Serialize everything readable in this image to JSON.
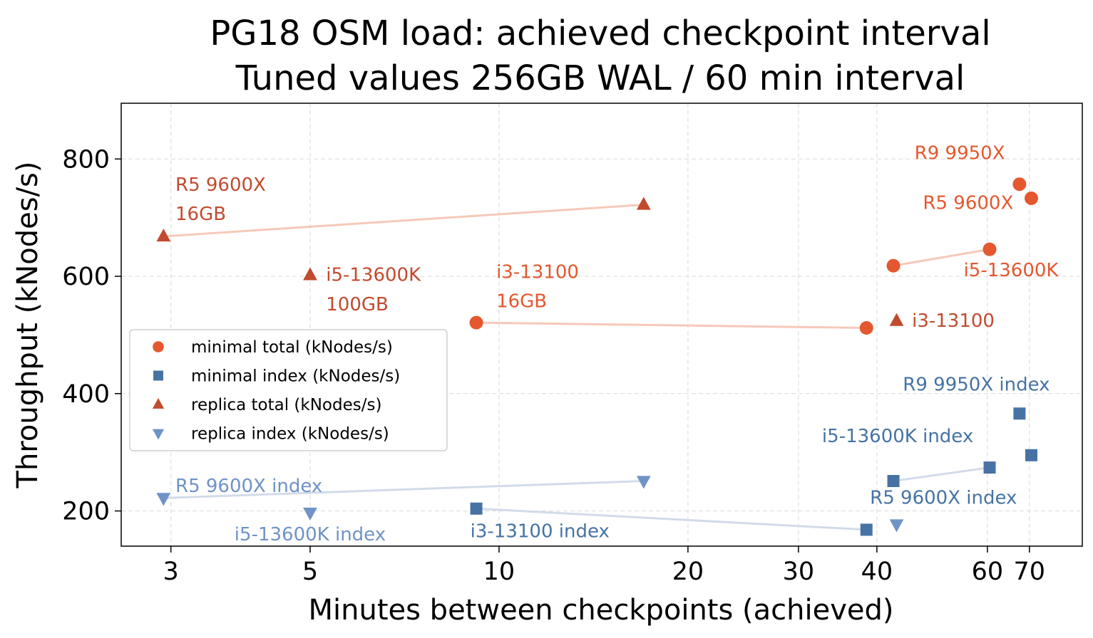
{
  "chart_data": {
    "type": "scatter",
    "title": [
      "PG18 OSM load:  achieved checkpoint interval",
      "Tuned values 256GB WAL / 60 min interval"
    ],
    "xlabel": "Minutes between checkpoints (achieved)",
    "ylabel": "Throughput (kNodes/s)",
    "xscale": "log",
    "xlim": [
      2.5,
      85
    ],
    "ylim": [
      140,
      895
    ],
    "xticks": [
      3,
      5,
      10,
      20,
      30,
      40,
      60,
      70
    ],
    "xtick_labels": [
      "3",
      "5",
      "10",
      "20",
      "30",
      "40",
      "60",
      "70"
    ],
    "yticks": [
      200,
      400,
      600,
      800
    ],
    "ytick_labels": [
      "200",
      "400",
      "600",
      "800"
    ],
    "grid": true,
    "legend_position": "center-left",
    "colors": {
      "minimal_total": "#e5572e",
      "minimal_index": "#4673a4",
      "replica_total": "#c14b2f",
      "replica_index": "#6f93c7",
      "minimal_total_line": "#f6c9b9",
      "index_line": "#d2dbea"
    },
    "series": [
      {
        "name": "minimal total (kNodes/s)",
        "marker": "circle",
        "color": "#e5572e",
        "points": [
          {
            "x": 9.2,
            "y": 521,
            "label": "i3-13100"
          },
          {
            "x": 38.5,
            "y": 512,
            "label": "i3-13100"
          },
          {
            "x": 42.5,
            "y": 618,
            "label": "i5-13600K"
          },
          {
            "x": 60.5,
            "y": 646,
            "label": "i5-13600K"
          },
          {
            "x": 67.5,
            "y": 757,
            "label": "R9 9950X"
          },
          {
            "x": 70.5,
            "y": 733,
            "label": "R5 9600X"
          }
        ]
      },
      {
        "name": "minimal index (kNodes/s)",
        "marker": "square",
        "color": "#4673a4",
        "points": [
          {
            "x": 9.2,
            "y": 204,
            "label": "i3-13100"
          },
          {
            "x": 38.5,
            "y": 168,
            "label": "i3-13100"
          },
          {
            "x": 42.5,
            "y": 251,
            "label": "i5-13600K"
          },
          {
            "x": 60.5,
            "y": 274,
            "label": "i5-13600K"
          },
          {
            "x": 67.5,
            "y": 366,
            "label": "R9 9950X"
          },
          {
            "x": 70.5,
            "y": 295,
            "label": "R5 9600X"
          }
        ]
      },
      {
        "name": "replica total (kNodes/s)",
        "marker": "triangle-up",
        "color": "#c14b2f",
        "points": [
          {
            "x": 2.92,
            "y": 668,
            "label": "R5 9600X"
          },
          {
            "x": 17.0,
            "y": 722,
            "label": "R5 9600X"
          },
          {
            "x": 5.0,
            "y": 602,
            "label": "i5-13600K"
          },
          {
            "x": 43.0,
            "y": 524,
            "label": "i3-13100"
          }
        ]
      },
      {
        "name": "replica index (kNodes/s)",
        "marker": "triangle-down",
        "color": "#6f93c7",
        "points": [
          {
            "x": 2.92,
            "y": 222,
            "label": "R5 9600X"
          },
          {
            "x": 17.0,
            "y": 251,
            "label": "R5 9600X"
          },
          {
            "x": 5.0,
            "y": 197,
            "label": "i5-13600K"
          },
          {
            "x": 43.0,
            "y": 177,
            "label": "i3-13100"
          }
        ]
      }
    ],
    "connectors": [
      {
        "color": "#f6c9b9",
        "from": [
          2.92,
          668
        ],
        "to": [
          17.0,
          722
        ]
      },
      {
        "color": "#d2dbea",
        "from": [
          2.92,
          222
        ],
        "to": [
          17.0,
          251
        ]
      },
      {
        "color": "#f6c9b9",
        "from": [
          9.2,
          521
        ],
        "to": [
          38.5,
          512
        ]
      },
      {
        "color": "#d2dbea",
        "from": [
          9.2,
          204
        ],
        "to": [
          38.5,
          168
        ]
      },
      {
        "color": "#f6c9b9",
        "from": [
          42.5,
          618
        ],
        "to": [
          60.5,
          646
        ]
      },
      {
        "color": "#d2dbea",
        "from": [
          42.5,
          251
        ],
        "to": [
          60.5,
          274
        ]
      }
    ],
    "annotations": [
      {
        "text": "R5 9600X",
        "anchor": [
          3.05,
          746
        ],
        "align": "left",
        "color": "#c14b2f"
      },
      {
        "text": "16GB",
        "anchor": [
          3.05,
          696
        ],
        "align": "left",
        "color": "#c14b2f"
      },
      {
        "text": "i5-13600K",
        "anchor": [
          5.3,
          592
        ],
        "align": "left",
        "color": "#c14b2f"
      },
      {
        "text": "100GB",
        "anchor": [
          5.3,
          542
        ],
        "align": "left",
        "color": "#c14b2f"
      },
      {
        "text": "i3-13100",
        "anchor": [
          9.9,
          597
        ],
        "align": "left",
        "color": "#e5572e"
      },
      {
        "text": "16GB",
        "anchor": [
          9.9,
          547
        ],
        "align": "left",
        "color": "#e5572e"
      },
      {
        "text": "R9 9950X",
        "anchor": [
          64.0,
          800
        ],
        "align": "right",
        "color": "#e5572e"
      },
      {
        "text": "R5 9600X",
        "anchor": [
          66.0,
          715
        ],
        "align": "right",
        "color": "#e5572e"
      },
      {
        "text": "i5-13600K",
        "anchor": [
          55.0,
          600
        ],
        "align": "left",
        "color": "#e5572e"
      },
      {
        "text": "i3-13100",
        "anchor": [
          45.5,
          514
        ],
        "align": "left",
        "color": "#c14b2f"
      },
      {
        "text": "R9 9950X index",
        "anchor": [
          44.0,
          405
        ],
        "align": "left",
        "color": "#4673a4"
      },
      {
        "text": "i5-13600K index",
        "anchor": [
          57.0,
          317
        ],
        "align": "right",
        "color": "#4673a4"
      },
      {
        "text": "R5 9600X index",
        "anchor": [
          39.0,
          212
        ],
        "align": "left",
        "color": "#4673a4"
      },
      {
        "text": "R5 9600X index",
        "anchor": [
          3.05,
          232
        ],
        "align": "left",
        "color": "#6f93c7"
      },
      {
        "text": "i5-13600K index",
        "anchor": [
          5.0,
          150
        ],
        "align": "middle",
        "color": "#6f93c7"
      },
      {
        "text": "i3-13100 index",
        "anchor": [
          9.0,
          155
        ],
        "align": "left",
        "color": "#4673a4"
      }
    ]
  }
}
